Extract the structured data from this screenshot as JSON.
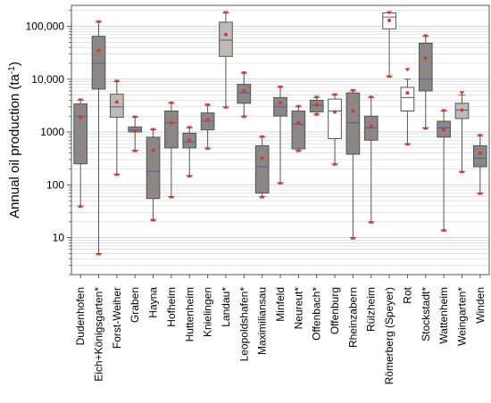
{
  "chart_data": {
    "type": "box",
    "ylabel_main": "Annual oil production (ta",
    "ylabel_sup": "-1",
    "ylabel_close": ")",
    "yscale": "log",
    "ylim": [
      2,
      250000
    ],
    "yticks": [
      {
        "value": 10,
        "label": "10"
      },
      {
        "value": 100,
        "label": "100"
      },
      {
        "value": 1000,
        "label": "1000"
      },
      {
        "value": 10000,
        "label": "10,000"
      },
      {
        "value": 100000,
        "label": "100,000"
      }
    ],
    "grid": true,
    "categories": [
      "Dudenhofen",
      "Eich+Königsgarten*",
      "Forst-Weiher",
      "Graben",
      "Hayna",
      "Hofheim",
      "Huttenheim",
      "Knielingen",
      "Landau*",
      "Leopoldshafen*",
      "Maximiliansau",
      "Minfeld",
      "Neureut*",
      "Offenbach*",
      "Offenburg",
      "Rheinzabern",
      "Rülzheim",
      "Römerberg (Speyer)",
      "Rot",
      "Stockstadt*",
      "Wattenheim",
      "Weingarten*",
      "Winden"
    ],
    "boxes": [
      {
        "whisker_low": 40,
        "q1": 250,
        "median": 2000,
        "q3": 3400,
        "whisker_high": 4000,
        "mean": 1900,
        "max_marker": 4000,
        "fill": "#8c8784"
      },
      {
        "whisker_low": 5,
        "q1": 6500,
        "median": 20000,
        "q3": 65000,
        "whisker_high": 120000,
        "mean": 35000,
        "max_marker": 120000,
        "fill": "#8c8784"
      },
      {
        "whisker_low": 160,
        "q1": 1900,
        "median": 3000,
        "q3": 5200,
        "whisker_high": 9000,
        "mean": 3700,
        "max_marker": 9000,
        "fill": "#c0bab5"
      },
      {
        "whisker_low": 450,
        "q1": 1000,
        "median": 1100,
        "q3": 1250,
        "whisker_high": 1900,
        "mean": 1050,
        "max_marker": 1900,
        "fill": "#8c8784"
      },
      {
        "whisker_low": 22,
        "q1": 55,
        "median": 180,
        "q3": 800,
        "whisker_high": 1100,
        "mean": 450,
        "max_marker": 1100,
        "fill": "#8c8784"
      },
      {
        "whisker_low": 60,
        "q1": 500,
        "median": 1500,
        "q3": 2500,
        "whisker_high": 3500,
        "mean": 1500,
        "max_marker": 3500,
        "fill": "#8c8784"
      },
      {
        "whisker_low": 150,
        "q1": 500,
        "median": 650,
        "q3": 950,
        "whisker_high": 1200,
        "mean": 700,
        "max_marker": 1200,
        "fill": "#8c8784"
      },
      {
        "whisker_low": 500,
        "q1": 1100,
        "median": 1600,
        "q3": 2300,
        "whisker_high": 3200,
        "mean": 1700,
        "max_marker": 3200,
        "fill": "#8c8784"
      },
      {
        "whisker_low": 3000,
        "q1": 27000,
        "median": 55000,
        "q3": 120000,
        "whisker_high": 180000,
        "mean": 70000,
        "max_marker": 180000,
        "fill": "#c0bab5"
      },
      {
        "whisker_low": 2000,
        "q1": 3500,
        "median": 5500,
        "q3": 8000,
        "whisker_high": 13000,
        "mean": 6000,
        "max_marker": 13000,
        "fill": "#8c8784"
      },
      {
        "whisker_low": 60,
        "q1": 70,
        "median": 220,
        "q3": 550,
        "whisker_high": 800,
        "mean": 320,
        "max_marker": 800,
        "fill": "#8c8784"
      },
      {
        "whisker_low": 110,
        "q1": 2000,
        "median": 3000,
        "q3": 4500,
        "whisker_high": 7000,
        "mean": 3600,
        "max_marker": 7000,
        "fill": "#8c8784"
      },
      {
        "whisker_low": 450,
        "q1": 480,
        "median": 1400,
        "q3": 2500,
        "whisker_high": 3000,
        "mean": 1500,
        "max_marker": 3000,
        "fill": "#8c8784"
      },
      {
        "whisker_low": 2200,
        "q1": 2400,
        "median": 3200,
        "q3": 4000,
        "whisker_high": 4500,
        "mean": 3300,
        "max_marker": 4500,
        "fill": "#8c8784"
      },
      {
        "whisker_low": 250,
        "q1": 750,
        "median": 2500,
        "q3": 4200,
        "whisker_high": 5000,
        "mean": 2400,
        "max_marker": 5000,
        "fill": "#ffffff"
      },
      {
        "whisker_low": 10,
        "q1": 380,
        "median": 1500,
        "q3": 5500,
        "whisker_high": 6000,
        "mean": 2500,
        "max_marker": 6000,
        "fill": "#8c8784"
      },
      {
        "whisker_low": 20,
        "q1": 700,
        "median": 1200,
        "q3": 2000,
        "whisker_high": 4500,
        "mean": 1300,
        "max_marker": 4500,
        "fill": "#8c8784"
      },
      {
        "whisker_low": 11500,
        "q1": 90000,
        "median": 150000,
        "q3": 180000,
        "whisker_high": 180000,
        "mean": 130000,
        "max_marker": 180000,
        "fill": "#ffffff"
      },
      {
        "whisker_low": 600,
        "q1": 2500,
        "median": 4500,
        "q3": 7000,
        "whisker_high": 10000,
        "mean": 5500,
        "max_marker": 15000,
        "fill": "#ffffff"
      },
      {
        "whisker_low": 1200,
        "q1": 6000,
        "median": 10000,
        "q3": 48000,
        "whisker_high": 65000,
        "mean": 25000,
        "max_marker": 65000,
        "fill": "#8c8784"
      },
      {
        "whisker_low": 14,
        "q1": 800,
        "median": 1200,
        "q3": 1600,
        "whisker_high": 2500,
        "mean": 1100,
        "max_marker": 2500,
        "fill": "#8c8784"
      },
      {
        "whisker_low": 180,
        "q1": 1800,
        "median": 2600,
        "q3": 3500,
        "whisker_high": 5000,
        "mean": 2600,
        "max_marker": 5500,
        "fill": "#c0bab5"
      },
      {
        "whisker_low": 70,
        "q1": 220,
        "median": 320,
        "q3": 550,
        "whisker_high": 850,
        "mean": 400,
        "max_marker": 850,
        "fill": "#8c8784"
      }
    ],
    "colors": {
      "box_stroke": "#555555",
      "median_line": "#4a5aa8",
      "mean_marker": "#d63a2a",
      "max_marker": "#d63a2a",
      "grid": "#d0d0d0",
      "axis": "#555555"
    }
  }
}
